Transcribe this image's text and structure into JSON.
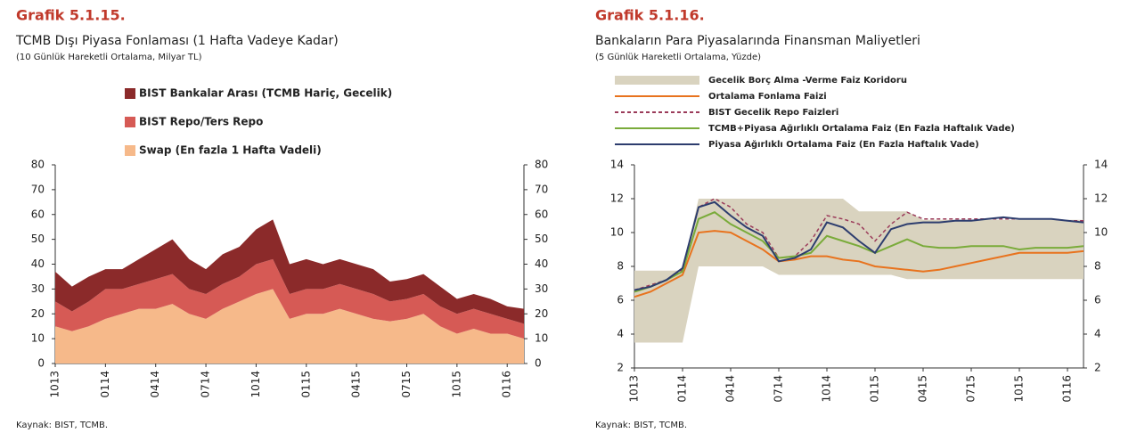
{
  "chart_data": [
    {
      "type": "area",
      "stacked": true,
      "heading": "Grafik 5.1.15.",
      "title": "TCMB Dışı Piyasa Fonlaması (1 Hafta Vadeye Kadar)",
      "subtitle": "(10 Günlük Hareketli Ortalama, Milyar TL)",
      "source": "Kaynak: BIST, TCMB.",
      "categories": [
        "1013",
        null,
        null,
        "0114",
        null,
        null,
        "0414",
        null,
        null,
        "0714",
        null,
        null,
        "1014",
        null,
        null,
        "0115",
        null,
        null,
        "0415",
        null,
        null,
        "0715",
        null,
        null,
        "1015",
        null,
        null,
        "0116",
        null
      ],
      "series": [
        {
          "name": "Swap (En fazla 1 Hafta Vadeli)",
          "color": "#f6b98a",
          "values": [
            15,
            13,
            15,
            18,
            20,
            22,
            22,
            24,
            20,
            18,
            22,
            25,
            28,
            30,
            18,
            20,
            20,
            22,
            20,
            18,
            17,
            18,
            20,
            15,
            12,
            14,
            12,
            12,
            10
          ]
        },
        {
          "name": "BIST Repo/Ters Repo",
          "color": "#d65a55",
          "values": [
            10,
            8,
            10,
            12,
            10,
            10,
            12,
            12,
            10,
            10,
            10,
            10,
            12,
            12,
            10,
            10,
            10,
            10,
            10,
            10,
            8,
            8,
            8,
            8,
            8,
            8,
            8,
            6,
            6
          ]
        },
        {
          "name": "BIST Bankalar Arası (TCMB Hariç, Gecelik)",
          "color": "#8b2a2a",
          "values": [
            12,
            10,
            10,
            8,
            8,
            10,
            12,
            14,
            12,
            10,
            12,
            12,
            14,
            16,
            12,
            12,
            10,
            10,
            10,
            10,
            8,
            8,
            8,
            8,
            6,
            6,
            6,
            5,
            6
          ]
        }
      ],
      "ylim": [
        0,
        80
      ],
      "yticks": [
        0,
        10,
        20,
        30,
        40,
        50,
        60,
        70,
        80
      ]
    },
    {
      "type": "line",
      "heading": "Grafik 5.1.16.",
      "title": "Bankaların Para Piyasalarında Finansman Maliyetleri",
      "subtitle": "(5 Günlük Hareketli Ortalama, Yüzde)",
      "source": "Kaynak: BIST, TCMB.",
      "categories": [
        "1013",
        null,
        null,
        "0114",
        null,
        null,
        "0414",
        null,
        null,
        "0714",
        null,
        null,
        "1014",
        null,
        null,
        "0115",
        null,
        null,
        "0415",
        null,
        null,
        "0715",
        null,
        null,
        "1015",
        null,
        null,
        "0116",
        null
      ],
      "band": {
        "name": "Gecelik Borç Alma -Verme Faiz Koridoru",
        "color": "#d9d3bf",
        "low": [
          3.5,
          3.5,
          3.5,
          3.5,
          8,
          8,
          8,
          8,
          8,
          7.5,
          7.5,
          7.5,
          7.5,
          7.5,
          7.5,
          7.5,
          7.5,
          7.25,
          7.25,
          7.25,
          7.25,
          7.25,
          7.25,
          7.25,
          7.25,
          7.25,
          7.25,
          7.25,
          7.25
        ],
        "high": [
          7.75,
          7.75,
          7.75,
          7.75,
          12,
          12,
          12,
          12,
          12,
          12,
          12,
          12,
          12,
          12,
          11.25,
          11.25,
          11.25,
          11.25,
          10.75,
          10.75,
          10.75,
          10.75,
          10.75,
          10.75,
          10.75,
          10.75,
          10.75,
          10.75,
          10.75
        ]
      },
      "series": [
        {
          "name": "Ortalama Fonlama Faizi",
          "color": "#e8731e",
          "values": [
            6.2,
            6.5,
            7.0,
            7.5,
            10,
            10.1,
            10.0,
            9.5,
            9,
            8.3,
            8.4,
            8.6,
            8.6,
            8.4,
            8.3,
            8.0,
            7.9,
            7.8,
            7.7,
            7.8,
            8.0,
            8.2,
            8.4,
            8.6,
            8.8,
            8.8,
            8.8,
            8.8,
            8.9
          ]
        },
        {
          "name": "BIST Gecelik Repo Faizleri",
          "color": "#9b3b5a",
          "dashed": true,
          "values": [
            6.6,
            6.9,
            7.2,
            7.8,
            11.5,
            12,
            11.5,
            10.5,
            10,
            8.5,
            8.6,
            9.5,
            11,
            10.8,
            10.5,
            9.5,
            10.5,
            11.2,
            10.8,
            10.8,
            10.8,
            10.8,
            10.8,
            10.8,
            10.8,
            10.8,
            10.8,
            10.7,
            10.7
          ]
        },
        {
          "name": "TCMB+Piyasa Ağırlıklı Ortalama Faiz (En Fazla Haftalık Vade)",
          "color": "#7aab3a",
          "values": [
            6.5,
            6.8,
            7.2,
            7.7,
            10.8,
            11.2,
            10.5,
            10,
            9.5,
            8.5,
            8.6,
            8.8,
            9.8,
            9.5,
            9.2,
            8.8,
            9.2,
            9.6,
            9.2,
            9.1,
            9.1,
            9.2,
            9.2,
            9.2,
            9.0,
            9.1,
            9.1,
            9.1,
            9.2
          ]
        },
        {
          "name": "Piyasa Ağırlıklı Ortalama Faiz (En Fazla Haftalık Vade)",
          "color": "#2d3d6e",
          "values": [
            6.6,
            6.8,
            7.2,
            7.9,
            11.5,
            11.8,
            11.0,
            10.3,
            9.8,
            8.3,
            8.5,
            9.0,
            10.6,
            10.3,
            9.5,
            8.8,
            10.2,
            10.5,
            10.6,
            10.6,
            10.7,
            10.7,
            10.8,
            10.9,
            10.8,
            10.8,
            10.8,
            10.7,
            10.6
          ]
        }
      ],
      "ylim": [
        2,
        14
      ],
      "yticks": [
        2,
        4,
        6,
        8,
        10,
        12,
        14
      ]
    }
  ]
}
